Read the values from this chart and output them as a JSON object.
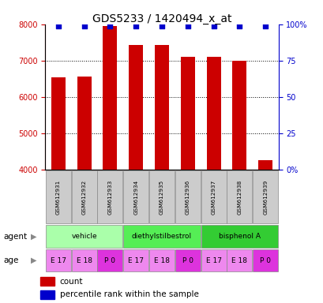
{
  "title": "GDS5233 / 1420494_x_at",
  "samples": [
    "GSM612931",
    "GSM612932",
    "GSM612933",
    "GSM612934",
    "GSM612935",
    "GSM612936",
    "GSM612937",
    "GSM612938",
    "GSM612939"
  ],
  "counts": [
    6550,
    6560,
    7950,
    7420,
    7430,
    7110,
    7100,
    7000,
    4260
  ],
  "percentiles": [
    99,
    99,
    99,
    99,
    99,
    99,
    99,
    99,
    99
  ],
  "ylim": [
    4000,
    8000
  ],
  "yticks": [
    4000,
    5000,
    6000,
    7000,
    8000
  ],
  "agents": [
    {
      "label": "vehicle",
      "start": 0,
      "end": 3,
      "color": "#aaffaa"
    },
    {
      "label": "diethylstilbestrol",
      "start": 3,
      "end": 6,
      "color": "#55ee55"
    },
    {
      "label": "bisphenol A",
      "start": 6,
      "end": 9,
      "color": "#33cc33"
    }
  ],
  "ages": [
    "E 17",
    "E 18",
    "P 0",
    "E 17",
    "E 18",
    "P 0",
    "E 17",
    "E 18",
    "P 0"
  ],
  "age_light": "#ee88ee",
  "age_dark": "#dd33dd",
  "bar_color": "#cc0000",
  "dot_color": "#0000cc",
  "label_bar": "count",
  "label_dot": "percentile rank within the sample",
  "ylabel_color_left": "#cc0000",
  "ylabel_color_right": "#0000cc",
  "sample_box_color": "#cccccc"
}
